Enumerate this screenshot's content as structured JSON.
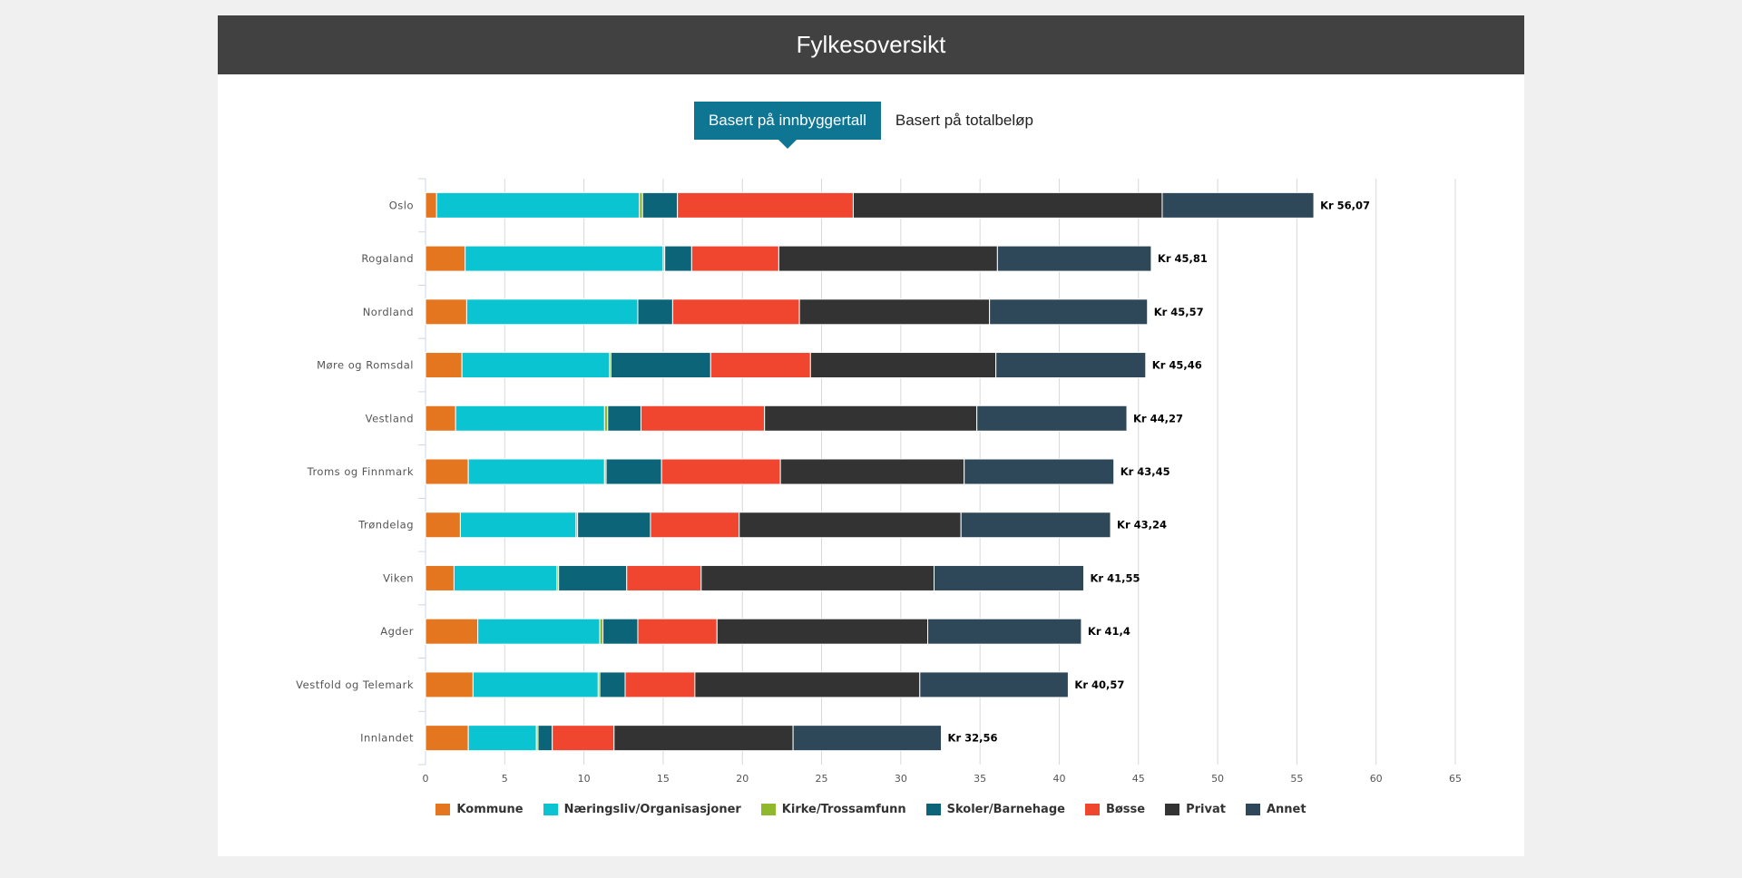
{
  "header": {
    "title": "Fylkesoversikt"
  },
  "tabs": [
    {
      "label": "Basert på innbyggertall",
      "active": true
    },
    {
      "label": "Basert på totalbeløp",
      "active": false
    }
  ],
  "chart_data": {
    "type": "bar",
    "orientation": "horizontal",
    "stacked": true,
    "title": "Fylkesoversikt",
    "xlim": [
      0,
      65
    ],
    "xticks": [
      0,
      5,
      10,
      15,
      20,
      25,
      30,
      35,
      40,
      45,
      50,
      55,
      60,
      65
    ],
    "grid": true,
    "legend_position": "bottom",
    "categories": [
      "Oslo",
      "Rogaland",
      "Nordland",
      "Møre og Romsdal",
      "Vestland",
      "Troms og Finnmark",
      "Trøndelag",
      "Viken",
      "Agder",
      "Vestfold og Telemark",
      "Innlandet"
    ],
    "totals": [
      "Kr 56,07",
      "Kr 45,81",
      "Kr 45,57",
      "Kr 45,46",
      "Kr 44,27",
      "Kr 43,45",
      "Kr 43,24",
      "Kr 41,55",
      "Kr 41,4",
      "Kr 40,57",
      "Kr 32,56"
    ],
    "series": [
      {
        "name": "Kommune",
        "color": "#e57620",
        "values": [
          0.7,
          2.5,
          2.6,
          2.3,
          1.9,
          2.7,
          2.2,
          1.8,
          3.3,
          3.0,
          2.7
        ]
      },
      {
        "name": "Næringsliv/Organisasjoner",
        "color": "#0ac5d1",
        "values": [
          12.8,
          12.5,
          10.8,
          9.3,
          9.4,
          8.6,
          7.3,
          6.5,
          7.7,
          7.9,
          4.3
        ]
      },
      {
        "name": "Kirke/Trossamfunn",
        "color": "#8fb82d",
        "values": [
          0.2,
          0.1,
          0.0,
          0.1,
          0.2,
          0.1,
          0.1,
          0.1,
          0.2,
          0.1,
          0.1
        ]
      },
      {
        "name": "Skoler/Barnehage",
        "color": "#0b6478",
        "values": [
          2.2,
          1.7,
          2.2,
          6.3,
          2.1,
          3.5,
          4.6,
          4.3,
          2.2,
          1.6,
          0.9
        ]
      },
      {
        "name": "Bøsse",
        "color": "#f04630",
        "values": [
          11.1,
          5.5,
          8.0,
          6.3,
          7.8,
          7.5,
          5.6,
          4.7,
          5.0,
          4.4,
          3.9
        ]
      },
      {
        "name": "Privat",
        "color": "#333333",
        "values": [
          19.5,
          13.8,
          12.0,
          11.7,
          13.4,
          11.6,
          14.0,
          14.7,
          13.3,
          14.2,
          11.3
        ]
      },
      {
        "name": "Annet",
        "color": "#2e4859",
        "values": [
          9.57,
          9.71,
          9.97,
          9.46,
          9.47,
          9.45,
          9.44,
          9.45,
          9.7,
          9.37,
          9.36
        ]
      }
    ]
  }
}
